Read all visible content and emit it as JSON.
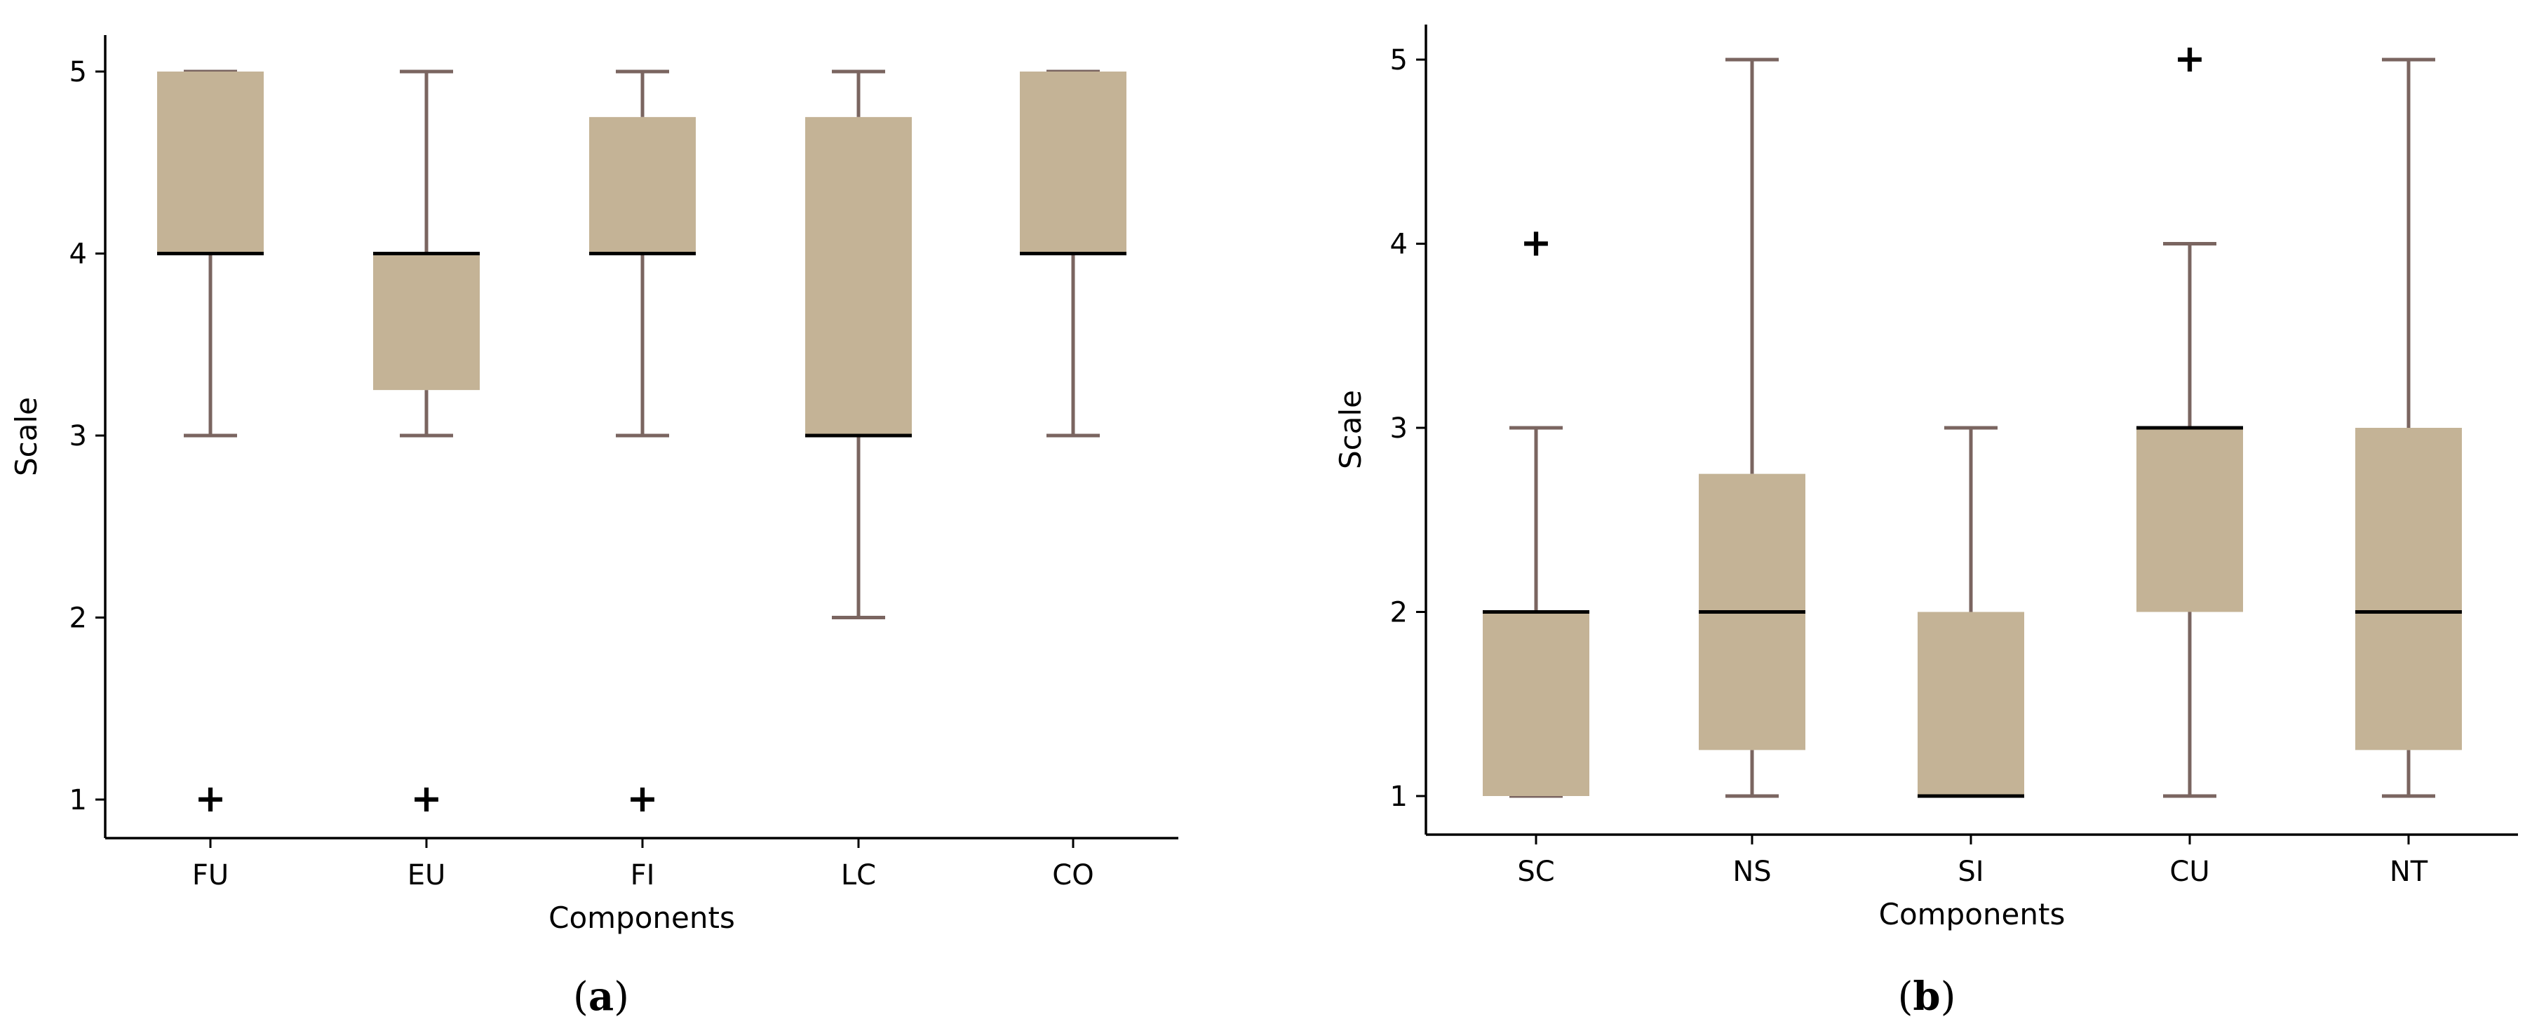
{
  "colors": {
    "box_fill": "#c4b396",
    "whisker": "#7a6560",
    "median": "#000000",
    "axis": "#000000",
    "outlier": "#000000"
  },
  "outlier_marker": "+",
  "panels": [
    {
      "caption_open": "(",
      "caption_letter": "a",
      "caption_close": ")"
    },
    {
      "caption_open": "(",
      "caption_letter": "b",
      "caption_close": ")"
    }
  ],
  "chart_data": [
    {
      "type": "box",
      "xlabel": "Components",
      "ylabel": "Scale",
      "ylim": [
        0.8,
        5.2
      ],
      "yticks": [
        1,
        2,
        3,
        4,
        5
      ],
      "categories": [
        "FU",
        "EU",
        "FI",
        "LC",
        "CO"
      ],
      "boxes": [
        {
          "whisker_low": 3,
          "q1": 4,
          "median": 4,
          "q3": 5,
          "whisker_high": 5,
          "outliers": [
            1
          ]
        },
        {
          "whisker_low": 3,
          "q1": 3.25,
          "median": 4,
          "q3": 4,
          "whisker_high": 5,
          "outliers": [
            1
          ]
        },
        {
          "whisker_low": 3,
          "q1": 4,
          "median": 4,
          "q3": 4.75,
          "whisker_high": 5,
          "outliers": [
            1
          ]
        },
        {
          "whisker_low": 2,
          "q1": 3,
          "median": 3,
          "q3": 4.75,
          "whisker_high": 5,
          "outliers": []
        },
        {
          "whisker_low": 3,
          "q1": 4,
          "median": 4,
          "q3": 5,
          "whisker_high": 5,
          "outliers": []
        }
      ],
      "grid": false
    },
    {
      "type": "box",
      "xlabel": "Components",
      "ylabel": "Scale",
      "ylim": [
        0.8,
        5.2
      ],
      "yticks": [
        1,
        2,
        3,
        4,
        5
      ],
      "categories": [
        "SC",
        "NS",
        "SI",
        "CU",
        "NT"
      ],
      "boxes": [
        {
          "whisker_low": 1,
          "q1": 1,
          "median": 2,
          "q3": 2,
          "whisker_high": 3,
          "outliers": [
            4
          ]
        },
        {
          "whisker_low": 1,
          "q1": 1.25,
          "median": 2,
          "q3": 2.75,
          "whisker_high": 5,
          "outliers": []
        },
        {
          "whisker_low": 1,
          "q1": 1,
          "median": 1,
          "q3": 2,
          "whisker_high": 3,
          "outliers": []
        },
        {
          "whisker_low": 1,
          "q1": 2,
          "median": 3,
          "q3": 3,
          "whisker_high": 4,
          "outliers": [
            5
          ]
        },
        {
          "whisker_low": 1,
          "q1": 1.25,
          "median": 2,
          "q3": 3,
          "whisker_high": 5,
          "outliers": []
        }
      ],
      "grid": false
    }
  ]
}
